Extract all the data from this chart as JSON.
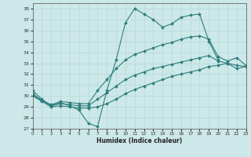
{
  "xlabel": "Humidex (Indice chaleur)",
  "background_color": "#cce8e8",
  "line_color": "#2e7d7d",
  "xlim": [
    0,
    23
  ],
  "ylim": [
    27,
    38.5
  ],
  "xticks": [
    0,
    1,
    2,
    3,
    4,
    5,
    6,
    7,
    8,
    9,
    10,
    11,
    12,
    13,
    14,
    15,
    16,
    17,
    18,
    19,
    20,
    21,
    22,
    23
  ],
  "yticks": [
    27,
    28,
    29,
    30,
    31,
    32,
    33,
    34,
    35,
    36,
    37,
    38
  ],
  "series": [
    {
      "x": [
        0,
        1,
        2,
        3,
        4,
        5,
        6,
        7,
        8,
        9,
        10,
        11,
        12,
        13,
        14,
        15,
        16,
        17,
        18,
        19,
        20
      ],
      "y": [
        30.5,
        29.7,
        29.1,
        29.4,
        29.1,
        28.7,
        27.5,
        27.2,
        30.5,
        33.3,
        36.7,
        38.0,
        37.5,
        37.0,
        36.3,
        36.6,
        37.2,
        37.4,
        37.5,
        35.0,
        33.3
      ]
    },
    {
      "x": [
        0,
        1,
        2,
        3,
        4,
        5,
        6,
        7,
        8,
        9,
        10,
        11,
        12,
        13,
        14,
        15,
        16,
        17,
        18,
        19,
        20,
        21,
        22,
        23
      ],
      "y": [
        30.2,
        29.6,
        29.2,
        29.5,
        29.4,
        29.3,
        29.3,
        30.5,
        31.5,
        32.5,
        33.3,
        33.8,
        34.1,
        34.4,
        34.7,
        34.9,
        35.2,
        35.4,
        35.5,
        35.2,
        33.6,
        33.2,
        33.5,
        32.8
      ]
    },
    {
      "x": [
        0,
        1,
        2,
        3,
        4,
        5,
        6,
        7,
        8,
        9,
        10,
        11,
        12,
        13,
        14,
        15,
        16,
        17,
        18,
        19,
        20,
        21,
        22,
        23
      ],
      "y": [
        30.0,
        29.5,
        29.0,
        29.1,
        29.0,
        28.9,
        28.9,
        29.0,
        29.3,
        29.7,
        30.2,
        30.6,
        30.9,
        31.2,
        31.5,
        31.8,
        32.0,
        32.2,
        32.4,
        32.7,
        32.8,
        33.0,
        32.5,
        32.7
      ]
    },
    {
      "x": [
        0,
        1,
        2,
        3,
        4,
        5,
        6,
        7,
        8,
        9,
        10,
        11,
        12,
        13,
        14,
        15,
        16,
        17,
        18,
        19,
        20,
        21,
        22,
        23
      ],
      "y": [
        30.1,
        29.6,
        29.1,
        29.3,
        29.2,
        29.1,
        29.1,
        29.7,
        30.3,
        30.9,
        31.5,
        31.9,
        32.2,
        32.5,
        32.7,
        32.9,
        33.1,
        33.3,
        33.5,
        33.7,
        33.2,
        33.0,
        32.8,
        32.7
      ]
    }
  ]
}
